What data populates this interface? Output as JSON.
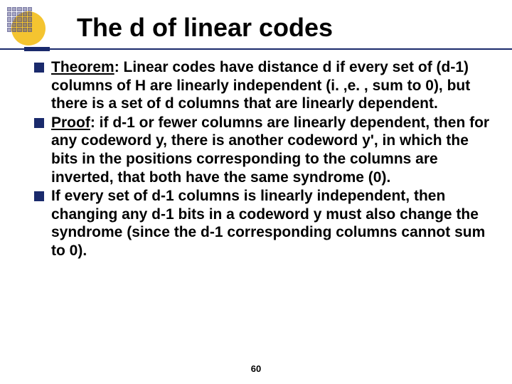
{
  "title": "The d of linear codes",
  "bullets": [
    {
      "label": "Theorem",
      "text": ": Linear codes have distance d if every set of (d-1) columns of H are linearly independent (i. ,e. , sum to 0), but there is a set of d columns that are linearly dependent."
    },
    {
      "label": "Proof",
      "text": ": if d-1 or fewer columns are linearly dependent, then for any codeword y, there is another codeword y', in which the bits in the positions corresponding to the columns are inverted, that both have the same syndrome (0)."
    },
    {
      "label": "",
      "text": "If every set of d-1 columns is linearly independent, then changing any d-1 bits in a codeword y must also change the syndrome (since the d-1 corresponding columns cannot sum to 0)."
    }
  ],
  "page_number": "60",
  "colors": {
    "accent": "#1a2a6c",
    "logo_circle": "#f4c430",
    "text": "#000000",
    "background": "#ffffff"
  }
}
